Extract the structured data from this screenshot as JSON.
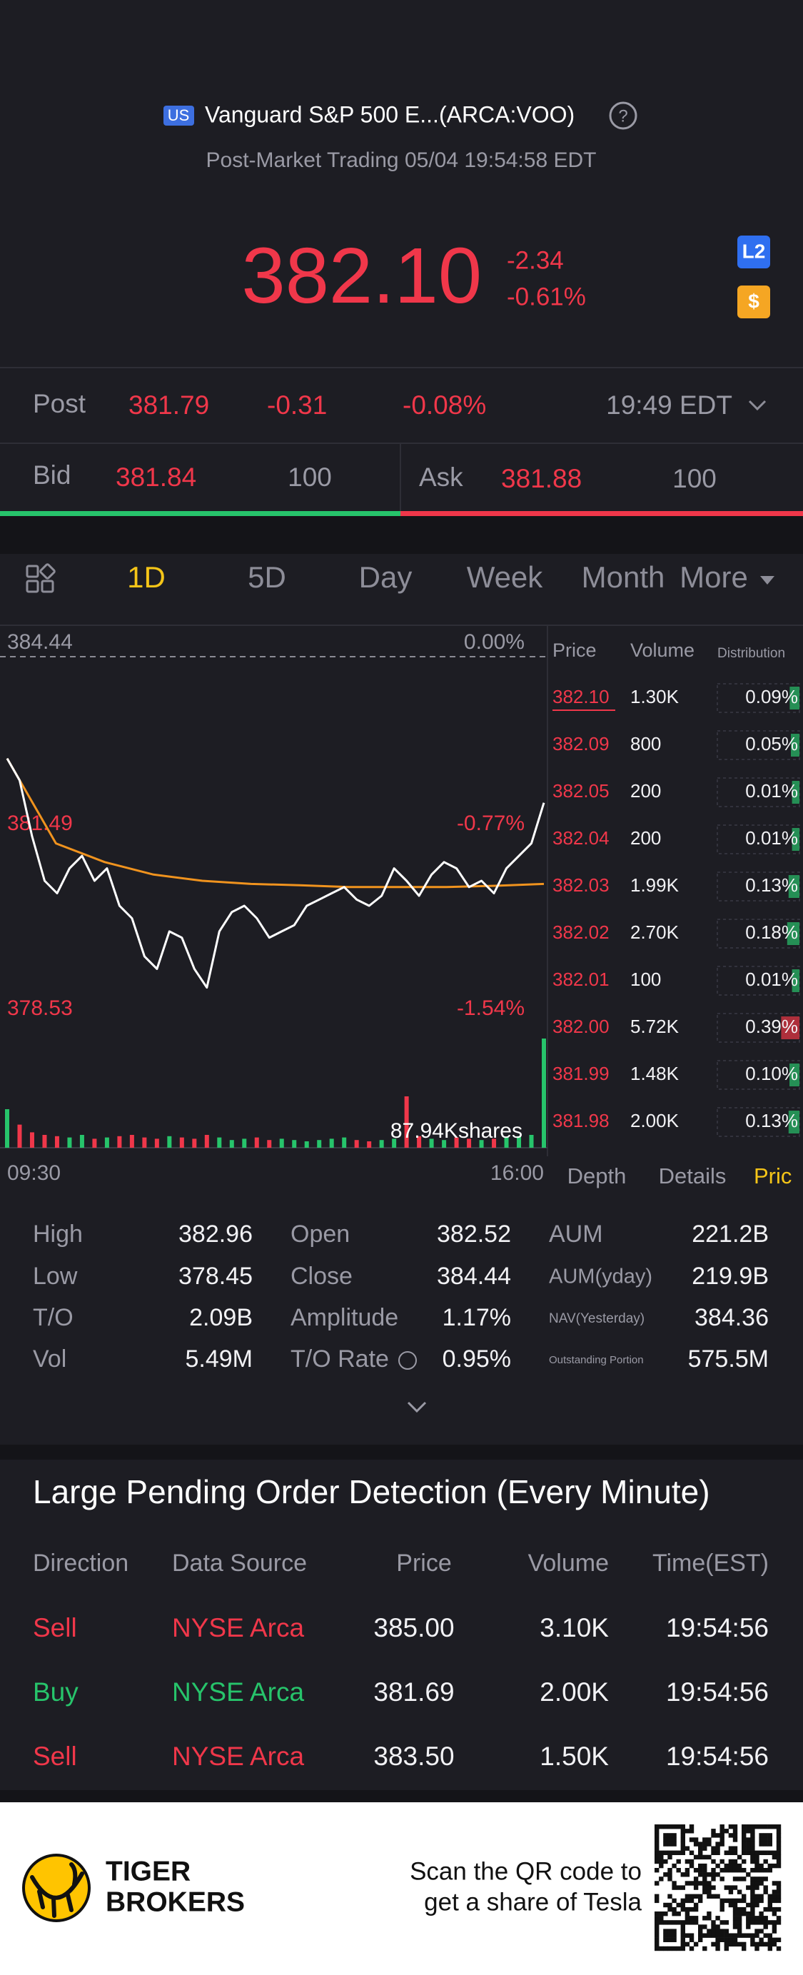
{
  "header": {
    "market_badge": "US",
    "name": "Vanguard S&P 500 E...(ARCA:VOO)",
    "status": "Post-Market Trading 05/04 19:54:58 EDT",
    "price": "382.10",
    "change": "-2.34",
    "change_pct": "-0.61%",
    "badges": [
      "L2",
      "$"
    ]
  },
  "post": {
    "label": "Post",
    "price": "381.79",
    "change": "-0.31",
    "change_pct": "-0.08%",
    "time": "19:49 EDT"
  },
  "quote": {
    "bid_label": "Bid",
    "bid": "381.84",
    "bid_size": "100",
    "ask_label": "Ask",
    "ask": "381.88",
    "ask_size": "100"
  },
  "tabs": {
    "items": [
      "1D",
      "5D",
      "Day",
      "Week",
      "Month",
      "More"
    ],
    "active": 0
  },
  "chart": {
    "type": "line",
    "y_labels": [
      {
        "price": "384.44",
        "pct": "0.00%"
      },
      {
        "price": "381.49",
        "pct": "-0.77%"
      },
      {
        "price": "378.53",
        "pct": "-1.54%"
      }
    ],
    "ylim": [
      378.53,
      384.44
    ],
    "x_labels": [
      "09:30",
      "16:00"
    ],
    "price": {
      "color": "#ffffff",
      "values": [
        382.81,
        382.46,
        381.56,
        380.85,
        380.65,
        381.05,
        381.25,
        380.85,
        381.05,
        380.45,
        380.25,
        379.64,
        379.44,
        380.04,
        379.94,
        379.44,
        379.14,
        380.04,
        380.35,
        380.45,
        380.25,
        379.94,
        380.04,
        380.14,
        380.45,
        380.55,
        380.65,
        380.75,
        380.55,
        380.45,
        380.61,
        381.05,
        380.85,
        380.61,
        380.95,
        381.15,
        381.05,
        380.75,
        380.85,
        380.65,
        381.05,
        381.25,
        381.45,
        382.1
      ]
    },
    "average": {
      "color": "#f0931e",
      "values": [
        382.81,
        381.45,
        381.15,
        380.95,
        380.85,
        380.8,
        380.78,
        380.75,
        380.75,
        380.75,
        380.77,
        380.8
      ]
    },
    "volume_label": "87.94Kshares",
    "volume": {
      "values": [
        30,
        18,
        12,
        10,
        9,
        8,
        10,
        7,
        8,
        9,
        10,
        8,
        7,
        9,
        8,
        7,
        10,
        8,
        6,
        7,
        8,
        6,
        7,
        6,
        5,
        6,
        7,
        8,
        6,
        5,
        6,
        7,
        40,
        9,
        7,
        6,
        8,
        7,
        6,
        7,
        8,
        9,
        10,
        85
      ],
      "ylim": [
        0,
        90
      ],
      "up_color": "#27c46b",
      "down_color": "#f0374a"
    }
  },
  "order_book": {
    "headers": [
      "Price",
      "Volume",
      "Distribution"
    ],
    "rows": [
      {
        "price": "382.10",
        "volume": "1.30K",
        "share": "0.09%",
        "color": "#27a35e"
      },
      {
        "price": "382.09",
        "volume": "800",
        "share": "0.05%",
        "color": "#27a35e"
      },
      {
        "price": "382.05",
        "volume": "200",
        "share": "0.01%",
        "color": "#27a35e"
      },
      {
        "price": "382.04",
        "volume": "200",
        "share": "0.01%",
        "color": "#27a35e"
      },
      {
        "price": "382.03",
        "volume": "1.99K",
        "share": "0.13%",
        "color": "#27a35e"
      },
      {
        "price": "382.02",
        "volume": "2.70K",
        "share": "0.18%",
        "color": "#27a35e"
      },
      {
        "price": "382.01",
        "volume": "100",
        "share": "0.01%",
        "color": "#27a35e"
      },
      {
        "price": "382.00",
        "volume": "5.72K",
        "share": "0.39%",
        "color": "#c8323f"
      },
      {
        "price": "381.99",
        "volume": "1.48K",
        "share": "0.10%",
        "color": "#27a35e"
      },
      {
        "price": "381.98",
        "volume": "2.00K",
        "share": "0.13%",
        "color": "#27a35e"
      }
    ],
    "tabs": [
      "Depth",
      "Details",
      "Pric"
    ]
  },
  "stats": [
    [
      [
        "High",
        "382.96"
      ],
      [
        "Low",
        "378.45"
      ],
      [
        "T/O",
        "2.09B"
      ],
      [
        "Vol",
        "5.49M"
      ]
    ],
    [
      [
        "Open",
        "382.52"
      ],
      [
        "Close",
        "384.44"
      ],
      [
        "Amplitude",
        "1.17%"
      ],
      [
        "T/O Rate",
        "0.95%"
      ]
    ],
    [
      [
        "AUM",
        "221.2B"
      ],
      [
        "AUM(yday)",
        "219.9B"
      ],
      [
        "NAV(Yesterday)",
        "384.36"
      ],
      [
        "Outstanding Portion",
        "575.5M"
      ]
    ]
  ],
  "pending": {
    "title": "Large Pending Order Detection (Every Minute)",
    "headers": [
      "Direction",
      "Data Source",
      "Price",
      "Volume",
      "Time(EST)"
    ],
    "rows": [
      {
        "direction": "Sell",
        "source": "NYSE Arca",
        "price": "385.00",
        "volume": "3.10K",
        "time": "19:54:56",
        "color": "#f0374a"
      },
      {
        "direction": "Buy",
        "source": "NYSE Arca",
        "price": "381.69",
        "volume": "2.00K",
        "time": "19:54:56",
        "color": "#27c46b"
      },
      {
        "direction": "Sell",
        "source": "NYSE Arca",
        "price": "383.50",
        "volume": "1.50K",
        "time": "19:54:56",
        "color": "#f0374a"
      }
    ]
  },
  "footer": {
    "brand": [
      "TIGER",
      "BROKERS"
    ],
    "cta": [
      "Scan the QR code to",
      "get a share of Tesla"
    ]
  }
}
